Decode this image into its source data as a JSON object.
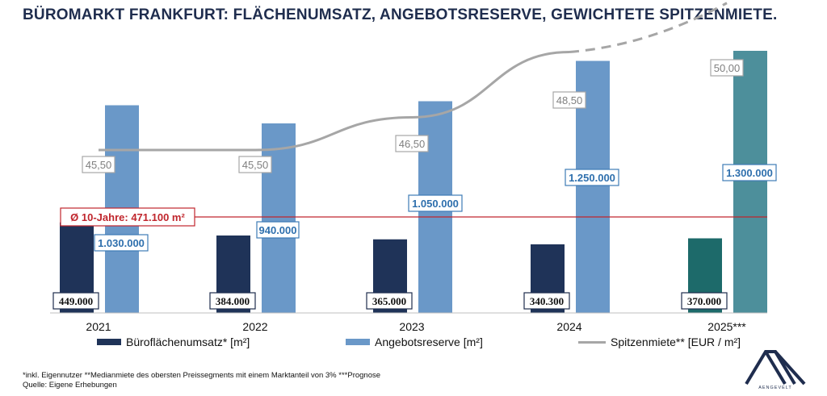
{
  "title": "BÜROMARKT FRANKFURT: FLÄCHENUMSATZ, ANGEBOTSRESERVE, GEWICHTETE SPITZENMIETE.",
  "chart_data": {
    "type": "bar+line",
    "categories": [
      "2021",
      "2022",
      "2023",
      "2024",
      "2025***"
    ],
    "series": [
      {
        "name": "Büroflächenumsatz* [m²]",
        "type": "bar",
        "values": [
          449000,
          384000,
          365000,
          340300,
          370000
        ],
        "labels": [
          "449.000",
          "384.000",
          "365.000",
          "340.300",
          "370.000"
        ]
      },
      {
        "name": "Angebotsreserve [m²]",
        "type": "bar",
        "values": [
          1030000,
          940000,
          1050000,
          1250000,
          1300000
        ],
        "labels": [
          "1.030.000",
          "940.000",
          "1.050.000",
          "1.250.000",
          "1.300.000"
        ]
      },
      {
        "name": "Spitzenmiete** [EUR / m²]",
        "type": "line",
        "axis": "secondary",
        "values": [
          45.5,
          45.5,
          46.5,
          48.5,
          50.0
        ],
        "labels": [
          "45,50",
          "45,50",
          "46,50",
          "48,50",
          "50,00"
        ],
        "forecast_from_index": 3
      }
    ],
    "reference_line": {
      "label": "Ø 10-Jahre: 471.100 m²",
      "value": 471100
    },
    "ylim": [
      0,
      1400000
    ],
    "y2lim": [
      40,
      51
    ],
    "colors": {
      "umsatz": "#1f3358",
      "reserve": "#6a98c8",
      "umsatz_forecast": "#1d6a6a",
      "reserve_forecast": "#4d8f9b",
      "line": "#a6a6a6",
      "reference": "#c0262d"
    }
  },
  "legend": {
    "umsatz": "Büroflächenumsatz* [m²]",
    "reserve": "Angebotsreserve [m²]",
    "miete": "Spitzenmiete** [EUR / m²]"
  },
  "footnote": {
    "line1": "*inkl. Eigennutzer **Medianmiete des obersten Preissegments mit einem Marktanteil von 3% ***Prognose",
    "line2": "Quelle: Eigene Erhebungen"
  },
  "logo": {
    "text": "AENGEVELT"
  }
}
